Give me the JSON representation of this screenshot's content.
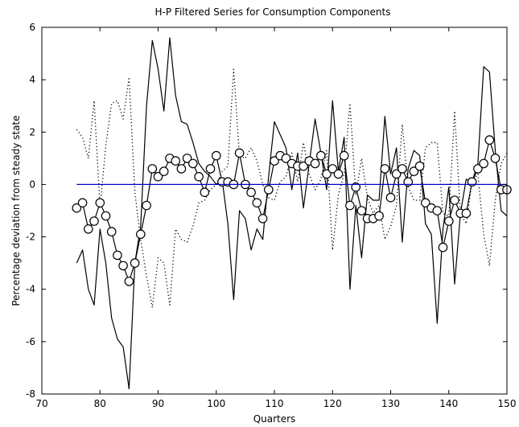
{
  "chart_data": {
    "type": "line",
    "title": "H-P Filtered Series for Consumption Components",
    "xlabel": "Quarters",
    "ylabel": "Percentage deviation from steady state",
    "xlim": [
      70,
      150
    ],
    "ylim": [
      -8,
      6
    ],
    "xticks": [
      70,
      80,
      90,
      100,
      110,
      120,
      130,
      140,
      150
    ],
    "yticks": [
      -8,
      -6,
      -4,
      -2,
      0,
      2,
      4,
      6
    ],
    "grid": false,
    "series": [
      {
        "style": "solid",
        "color": "#000000",
        "x": [
          76,
          77,
          78,
          79,
          80,
          81,
          82,
          83,
          84,
          85,
          86,
          87,
          88,
          89,
          90,
          91,
          92,
          93,
          94,
          95,
          96,
          97,
          98,
          99,
          100,
          101,
          102,
          103,
          104,
          105,
          106,
          107,
          108,
          109,
          110,
          111,
          112,
          113,
          114,
          115,
          116,
          117,
          118,
          119,
          120,
          121,
          122,
          123,
          124,
          125,
          126,
          127,
          128,
          129,
          130,
          131,
          132,
          133,
          134,
          135,
          136,
          137,
          138,
          139,
          140,
          141,
          142,
          143,
          144,
          145,
          146,
          147,
          148,
          149,
          150
        ],
        "y": [
          -3.0,
          -2.5,
          -4.0,
          -4.6,
          -1.7,
          -3.0,
          -5.1,
          -5.9,
          -6.2,
          -7.8,
          -3.0,
          -1.6,
          3.0,
          5.5,
          4.4,
          2.8,
          5.6,
          3.4,
          2.4,
          2.3,
          1.6,
          0.8,
          0.5,
          0.3,
          0.0,
          0.2,
          -1.5,
          -4.4,
          -1.0,
          -1.3,
          -2.5,
          -1.7,
          -2.1,
          0.3,
          2.4,
          1.9,
          1.4,
          -0.2,
          1.2,
          -0.9,
          0.8,
          2.5,
          1.2,
          -0.2,
          3.2,
          0.5,
          1.8,
          -4.0,
          -0.8,
          -2.8,
          -0.4,
          -0.6,
          -0.6,
          2.6,
          0.4,
          1.4,
          -2.2,
          0.6,
          1.3,
          1.1,
          -1.5,
          -1.9,
          -5.3,
          -1.7,
          -0.1,
          -3.8,
          -1.1,
          0.2,
          0.1,
          0.8,
          4.5,
          4.3,
          1.3,
          -1.0,
          -1.2
        ]
      },
      {
        "style": "dotted",
        "color": "#000000",
        "x": [
          76,
          77,
          78,
          79,
          80,
          81,
          82,
          83,
          84,
          85,
          86,
          87,
          88,
          89,
          90,
          91,
          92,
          93,
          94,
          95,
          96,
          97,
          98,
          99,
          100,
          101,
          102,
          103,
          104,
          105,
          106,
          107,
          108,
          109,
          110,
          111,
          112,
          113,
          114,
          115,
          116,
          117,
          118,
          119,
          120,
          121,
          122,
          123,
          124,
          125,
          126,
          127,
          128,
          129,
          130,
          131,
          132,
          133,
          134,
          135,
          136,
          137,
          138,
          139,
          140,
          141,
          142,
          143,
          144,
          145,
          146,
          147,
          148,
          149,
          150
        ],
        "y": [
          2.1,
          1.8,
          1.0,
          3.2,
          -0.9,
          1.5,
          3.1,
          3.2,
          2.5,
          4.1,
          -0.3,
          -2.1,
          -3.5,
          -4.7,
          -2.8,
          -3.0,
          -4.6,
          -1.7,
          -2.1,
          -2.2,
          -1.6,
          -0.7,
          -0.6,
          -0.2,
          0.0,
          0.5,
          0.7,
          4.4,
          1.1,
          1.0,
          1.4,
          0.9,
          0.0,
          -0.5,
          -0.6,
          0.1,
          0.3,
          1.2,
          0.1,
          1.6,
          0.4,
          -0.2,
          0.2,
          1.3,
          -2.5,
          -0.4,
          0.4,
          3.1,
          -0.4,
          1.0,
          -0.5,
          -1.1,
          -0.8,
          -2.1,
          -1.6,
          -0.8,
          2.3,
          -0.1,
          -0.6,
          -0.6,
          1.4,
          1.6,
          1.6,
          -1.1,
          -1.2,
          2.8,
          -1.1,
          -1.5,
          0.1,
          0.4,
          -1.9,
          -3.1,
          -0.6,
          0.8,
          1.2
        ]
      },
      {
        "style": "solid-circle-markers",
        "color": "#000000",
        "x": [
          76,
          77,
          78,
          79,
          80,
          81,
          82,
          83,
          84,
          85,
          86,
          87,
          88,
          89,
          90,
          91,
          92,
          93,
          94,
          95,
          96,
          97,
          98,
          99,
          100,
          101,
          102,
          103,
          104,
          105,
          106,
          107,
          108,
          109,
          110,
          111,
          112,
          113,
          114,
          115,
          116,
          117,
          118,
          119,
          120,
          121,
          122,
          123,
          124,
          125,
          126,
          127,
          128,
          129,
          130,
          131,
          132,
          133,
          134,
          135,
          136,
          137,
          138,
          139,
          140,
          141,
          142,
          143,
          144,
          145,
          146,
          147,
          148,
          149,
          150
        ],
        "y": [
          -0.9,
          -0.7,
          -1.7,
          -1.4,
          -0.7,
          -1.2,
          -1.8,
          -2.7,
          -3.1,
          -3.7,
          -3.0,
          -1.9,
          -0.8,
          0.6,
          0.3,
          0.5,
          1.0,
          0.9,
          0.6,
          1.0,
          0.8,
          0.3,
          -0.3,
          0.6,
          1.1,
          0.1,
          0.1,
          0.0,
          1.2,
          0.0,
          -0.3,
          -0.7,
          -1.3,
          -0.2,
          0.9,
          1.1,
          1.0,
          0.8,
          0.7,
          0.7,
          0.9,
          0.8,
          1.1,
          0.4,
          0.6,
          0.4,
          1.1,
          -0.8,
          -0.1,
          -1.0,
          -1.3,
          -1.3,
          -1.2,
          0.6,
          -0.5,
          0.4,
          0.6,
          0.1,
          0.5,
          0.7,
          -0.7,
          -0.9,
          -1.0,
          -2.4,
          -1.4,
          -0.6,
          -1.1,
          -1.1,
          0.1,
          0.6,
          0.8,
          1.7,
          1.0,
          -0.2,
          -0.2
        ]
      },
      {
        "style": "solid",
        "color": "#0000cc",
        "x": [
          76,
          150
        ],
        "y": [
          0,
          0
        ]
      }
    ]
  }
}
